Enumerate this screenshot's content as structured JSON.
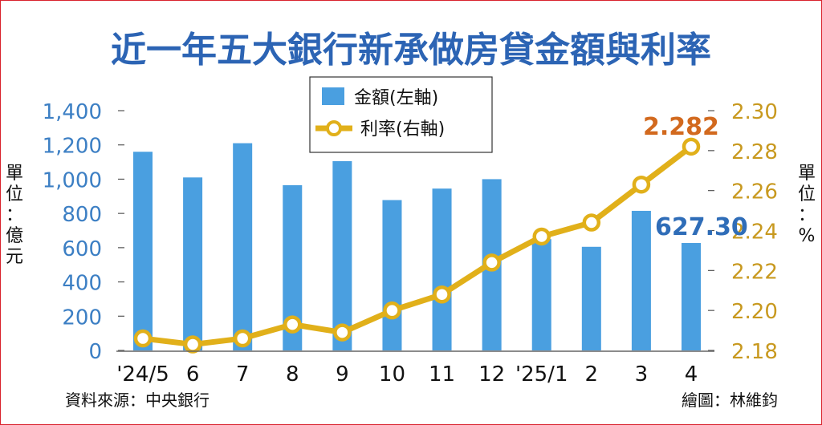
{
  "chart_data": {
    "type": "bar+line",
    "title": "近一年五大銀行新承做房貸金額與利率",
    "categories": [
      "'24/5",
      "6",
      "7",
      "8",
      "9",
      "10",
      "11",
      "12",
      "'25/1",
      "2",
      "3",
      "4"
    ],
    "series": [
      {
        "name": "金額(左軸)",
        "type": "bar",
        "axis": "left",
        "color": "#4a9fe0",
        "values": [
          1160,
          1010,
          1210,
          965,
          1105,
          878,
          945,
          1000,
          650,
          605,
          815,
          627.3
        ]
      },
      {
        "name": "利率(右軸)",
        "type": "line",
        "axis": "right",
        "color": "#e1b01a",
        "values": [
          2.186,
          2.183,
          2.186,
          2.193,
          2.189,
          2.2,
          2.208,
          2.224,
          2.237,
          2.244,
          2.263,
          2.282
        ]
      }
    ],
    "left_axis": {
      "label": "單位：億元",
      "ylim": [
        0,
        1400
      ],
      "ticks": [
        0,
        200,
        400,
        600,
        800,
        1000,
        1200,
        1400
      ],
      "tick_labels": [
        "0",
        "200",
        "400",
        "600",
        "800",
        "1,000",
        "1,200",
        "1,400"
      ],
      "color": "#3c7fc4"
    },
    "right_axis": {
      "label": "單位：%",
      "ylim": [
        2.18,
        2.3
      ],
      "ticks": [
        2.18,
        2.2,
        2.22,
        2.24,
        2.26,
        2.28,
        2.3
      ],
      "tick_labels": [
        "2.18",
        "2.20",
        "2.22",
        "2.24",
        "2.26",
        "2.28",
        "2.30"
      ],
      "color": "#c8991f"
    },
    "annotations": [
      {
        "text": "2.282",
        "color": "#d2691e"
      },
      {
        "text": "627.30",
        "color": "#2f6db8"
      }
    ],
    "legend_position": "top-center",
    "grid": false
  },
  "footer": {
    "source": "資料來源：中央銀行",
    "credit": "繪圖：林維鈞"
  }
}
